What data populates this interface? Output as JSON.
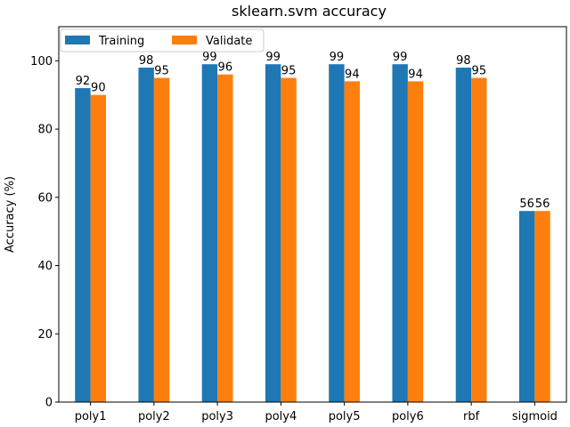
{
  "chart_data": {
    "type": "bar",
    "title": "sklearn.svm accuracy",
    "xlabel": "",
    "ylabel": "Accuracy (%)",
    "categories": [
      "poly1",
      "poly2",
      "poly3",
      "poly4",
      "poly5",
      "poly6",
      "rbf",
      "sigmoid"
    ],
    "series": [
      {
        "name": "Training",
        "color": "#1f77b4",
        "values": [
          92,
          98,
          99,
          99,
          99,
          99,
          98,
          56
        ]
      },
      {
        "name": "Validate",
        "color": "#ff7f0e",
        "values": [
          90,
          95,
          96,
          95,
          94,
          94,
          95,
          56
        ]
      }
    ],
    "ylim": [
      0,
      110
    ],
    "yticks": [
      0,
      20,
      40,
      60,
      80,
      100
    ],
    "grid": false,
    "legend": {
      "placement": "top-left",
      "columns": 2
    }
  }
}
